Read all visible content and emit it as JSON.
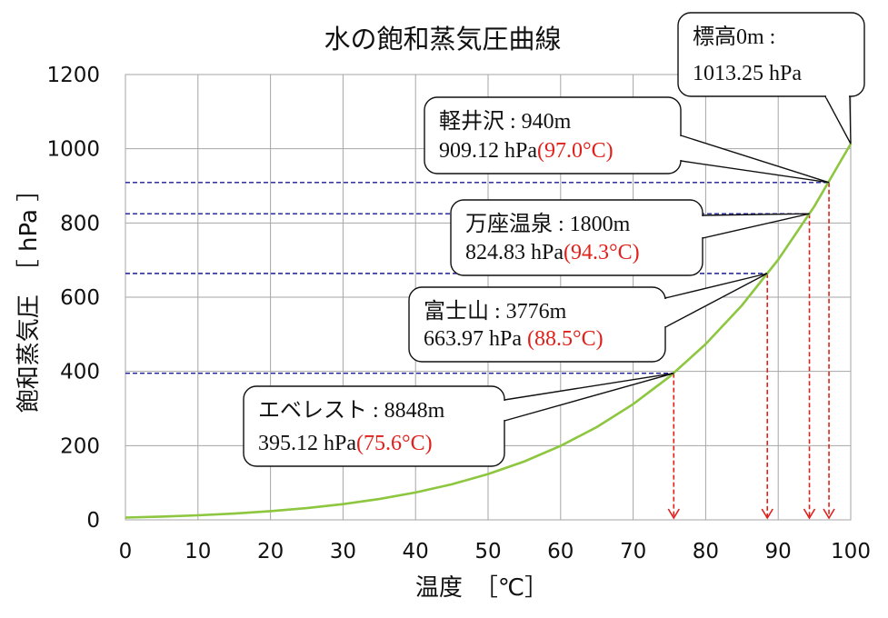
{
  "chart_data": {
    "type": "line",
    "title": "水の飽和蒸気圧曲線",
    "xlabel": "温度　［℃］",
    "ylabel": "飽和蒸気圧　［ hPa ］",
    "xlim": [
      0,
      100
    ],
    "ylim": [
      0,
      1200
    ],
    "x_ticks": [
      "0",
      "10",
      "20",
      "30",
      "40",
      "50",
      "60",
      "70",
      "80",
      "90",
      "100"
    ],
    "y_ticks": [
      "0",
      "200",
      "400",
      "600",
      "800",
      "1000",
      "1200"
    ],
    "grid": true,
    "series": [
      {
        "color": "#8dc63f",
        "x": [
          0,
          5,
          10,
          15,
          20,
          25,
          30,
          35,
          40,
          45,
          50,
          55,
          60,
          65,
          70,
          75,
          80,
          85,
          90,
          95,
          100
        ],
        "y": [
          6.11,
          8.72,
          12.27,
          17.04,
          23.37,
          31.67,
          42.43,
          56.24,
          73.77,
          95.85,
          123.35,
          157.4,
          199.3,
          250.1,
          311.8,
          385.5,
          473.6,
          578.0,
          701.1,
          845.3,
          1013.25
        ]
      }
    ],
    "annotations": [
      {
        "name": "標高0m : ",
        "pressure": "1013.25 hPa",
        "boiling": "",
        "x": 100,
        "y": 1013.25
      },
      {
        "name": "軽井沢 : 940m",
        "pressure": "909.12 hPa",
        "boiling": "(97.0°C)",
        "x": 97.0,
        "y": 909.12
      },
      {
        "name": "万座温泉 : 1800m",
        "pressure": "824.83 hPa",
        "boiling": "(94.3°C)",
        "x": 94.3,
        "y": 824.83
      },
      {
        "name": "富士山 : 3776m",
        "pressure": "663.97 hPa ",
        "boiling": "(88.5°C)",
        "x": 88.5,
        "y": 663.97
      },
      {
        "name": "エベレスト : 8848m",
        "pressure": "395.12 hPa",
        "boiling": "(75.6°C)",
        "x": 75.6,
        "y": 395.12
      }
    ],
    "colors": {
      "curve": "#8dc63f",
      "pressure_guide": "#1a1a9a",
      "temperature_arrow": "#e0201b",
      "boiling_text": "#e0201b",
      "grid": "#a6a6a6"
    }
  }
}
